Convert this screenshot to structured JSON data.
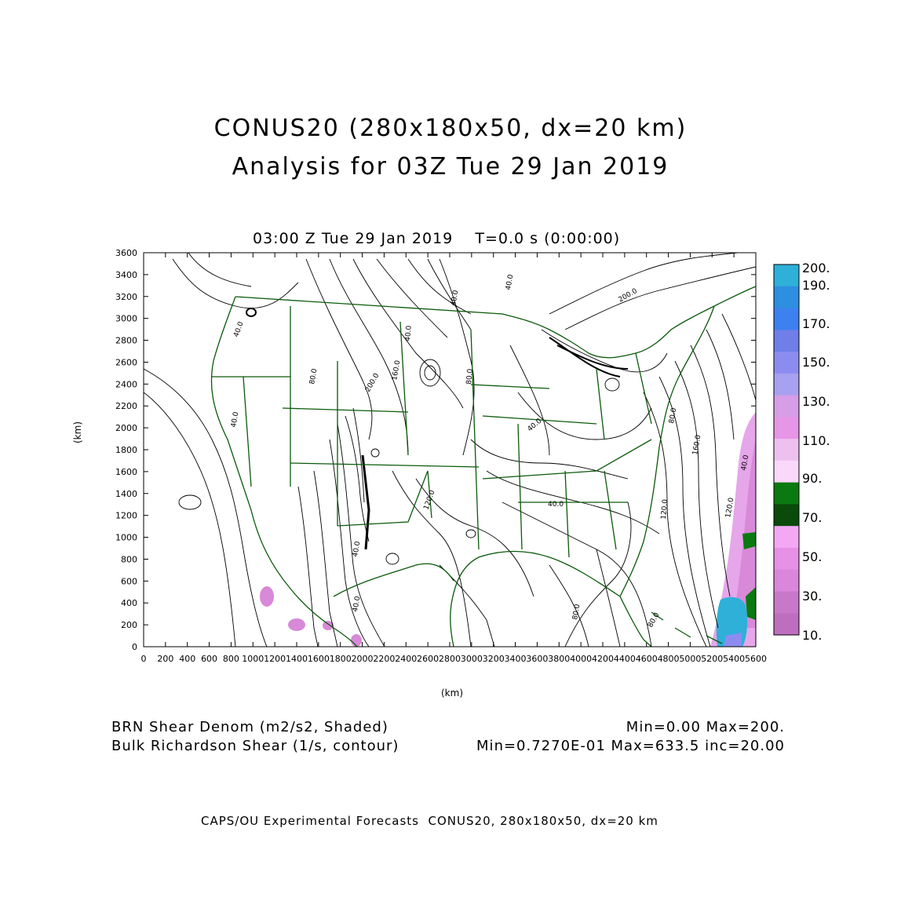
{
  "header": {
    "title_line1": "CONUS20 (280x180x50, dx=20 km)",
    "title_line2": "Analysis for 03Z Tue 29 Jan 2019"
  },
  "plot": {
    "time_label": "03:00 Z Tue 29 Jan 2019    T=0.0 s (0:00:00)",
    "x_unit": "(km)",
    "y_unit": "(km)",
    "x_ticks": [
      "0",
      "200",
      "400",
      "600",
      "800",
      "1000",
      "1200",
      "1400",
      "1600",
      "1800",
      "2000",
      "2200",
      "2400",
      "2600",
      "2800",
      "3000",
      "3200",
      "3400",
      "3600",
      "3800",
      "4000",
      "4200",
      "4400",
      "4600",
      "4800",
      "5000",
      "5200",
      "5400",
      "5600"
    ],
    "y_ticks": [
      "0",
      "200",
      "400",
      "600",
      "800",
      "1000",
      "1200",
      "1400",
      "1600",
      "1800",
      "2000",
      "2200",
      "2400",
      "2600",
      "2800",
      "3000",
      "3200",
      "3400",
      "3600"
    ],
    "x_range": [
      0,
      5600
    ],
    "y_range": [
      0,
      3600
    ],
    "contour_labels": [
      "40.0",
      "80.0",
      "120.0",
      "160.0",
      "200.0"
    ]
  },
  "colorbar": {
    "labels": [
      "200.",
      "190.",
      "170.",
      "150.",
      "130.",
      "110.",
      "90.",
      "70.",
      "50.",
      "30.",
      "10."
    ],
    "colors": [
      "#2eb0d8",
      "#2e8fe0",
      "#3d80f0",
      "#6f7ee8",
      "#8c8cf0",
      "#a8a0f0",
      "#d69ee6",
      "#e696e6",
      "#eec0f0",
      "#fad8fa",
      "#0a7a10",
      "#0a4a0a",
      "#f4a8f4",
      "#e690e6",
      "#da86da",
      "#c878c8",
      "#be6ebe"
    ]
  },
  "legend": {
    "shaded_label": "BRN Shear Denom (m2/s2, Shaded)",
    "shaded_stats": "Min=0.00 Max=200.",
    "contour_label": "Bulk Richardson Shear (1/s, contour)",
    "contour_stats": "Min=0.7270E-01 Max=633.5 inc=20.00"
  },
  "footer": {
    "text": "CAPS/OU Experimental Forecasts  CONUS20, 280x180x50, dx=20 km"
  }
}
